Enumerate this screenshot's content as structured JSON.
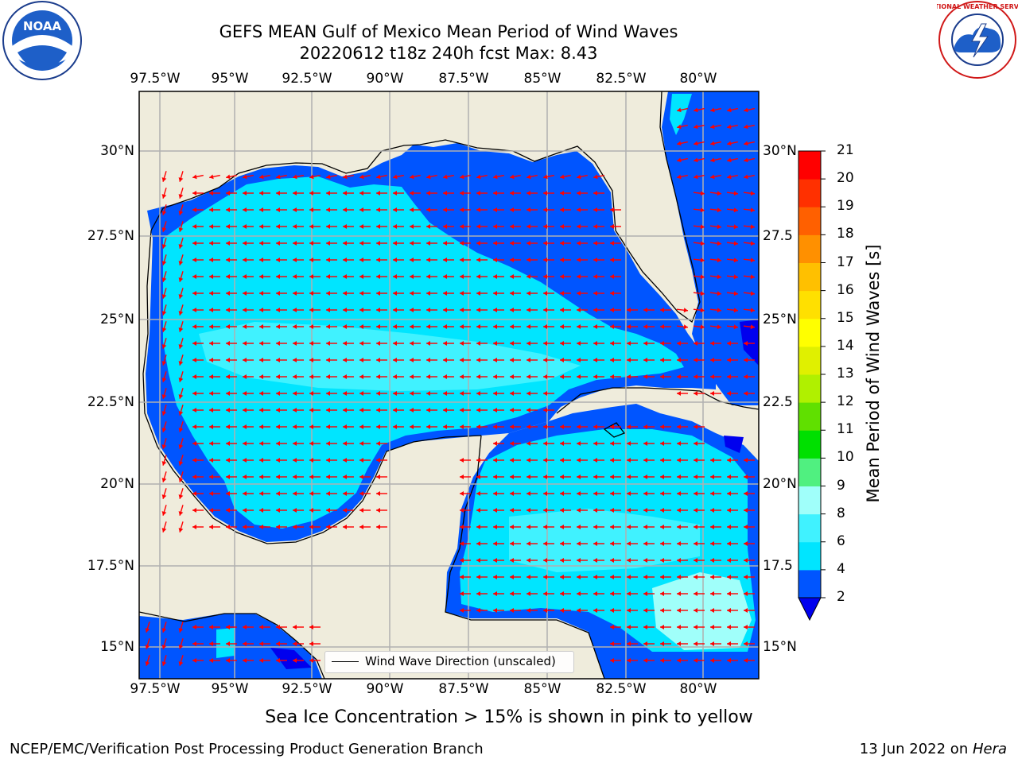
{
  "title": {
    "line1": "GEFS MEAN Gulf of Mexico Mean Period of Wind Waves",
    "line2": "20220612 t18z 240h fcst   Max: 8.43"
  },
  "logos": {
    "left_text": "NOAA",
    "right_text": "NATIONAL WEATHER SERVICE"
  },
  "map": {
    "lon_labels": [
      "97.5°W",
      "95°W",
      "92.5°W",
      "90°W",
      "87.5°W",
      "85°W",
      "82.5°W",
      "80°W"
    ],
    "lat_labels": [
      "30°N",
      "27.5°N",
      "25°N",
      "22.5°N",
      "20°N",
      "17.5°N",
      "15°N"
    ],
    "right_lat_labels": [
      "30°N",
      "27.5",
      "25°N",
      "22.5",
      "20°N",
      "17.5",
      "15°N"
    ],
    "land_color": "#efecdc",
    "arrow_color": "#ff0000",
    "grid_color": "#b0b0b0"
  },
  "legend": {
    "label": "Wind Wave Direction (unscaled)"
  },
  "colorbar": {
    "label": "Mean Period of Wind Waves [s]",
    "ticks": [
      "2",
      "4",
      "6",
      "8",
      "9",
      "10",
      "11",
      "12",
      "13",
      "14",
      "15",
      "16",
      "17",
      "18",
      "19",
      "20",
      "21"
    ],
    "colors": [
      "#0055ff",
      "#00e5ff",
      "#40f2ff",
      "#a0fffa",
      "#50f080",
      "#00e000",
      "#60e000",
      "#b0f000",
      "#e0f000",
      "#ffff00",
      "#ffe000",
      "#ffc000",
      "#ff9000",
      "#ff6000",
      "#ff3000",
      "#ff0000"
    ],
    "under_color": "#0000ee"
  },
  "footer": {
    "ice_note": "Sea Ice Concentration > 15% is shown in pink to yellow",
    "left": "NCEP/EMC/Verification Post Processing Product Generation Branch",
    "right_date": "13 Jun 2022 on ",
    "right_host": "Hera"
  }
}
